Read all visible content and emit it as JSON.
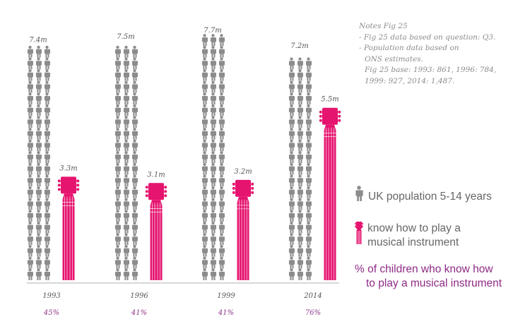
{
  "chart_data": {
    "type": "bar",
    "categories": [
      "1993",
      "1996",
      "1999",
      "2014"
    ],
    "series": [
      {
        "name": "UK population 5-14 years",
        "values": [
          7.4,
          7.5,
          7.7,
          7.2
        ],
        "labels": [
          "7.4m",
          "7.5m",
          "7.7m",
          "7.2m"
        ],
        "color": "#8c8c8c"
      },
      {
        "name": "know how to play a musical instrument",
        "values": [
          3.3,
          3.1,
          3.2,
          5.5
        ],
        "labels": [
          "3.3m",
          "3.1m",
          "3.2m",
          "5.5m"
        ],
        "color": "#e5146f"
      }
    ],
    "percentages": [
      "45%",
      "41%",
      "41%",
      "76%"
    ],
    "unit": "m",
    "ylim": [
      0,
      7.7
    ]
  },
  "notes": {
    "lines": [
      "Notes Fig 25",
      "- Fig 25 data based on question: Q3.",
      "- Population data based on",
      "ONS estimates.",
      "Fig 25 base: 1993: 861, 1996: 784,",
      "1999: 927, 2014: 1,487."
    ]
  },
  "legend": {
    "population_label": "UK population 5-14 years",
    "instrument_label_lines": [
      "know how to play a",
      "musical instrument"
    ],
    "percent_label_lines": [
      "% of children who know how",
      "to play a musical instrument"
    ],
    "population_icon": "person-icon",
    "instrument_icon": "guitar-icon"
  },
  "colors": {
    "person": "#8c8c8c",
    "guitar": "#e5146f",
    "percent_text": "#8e2a86",
    "axis": "#b0b0b0"
  }
}
